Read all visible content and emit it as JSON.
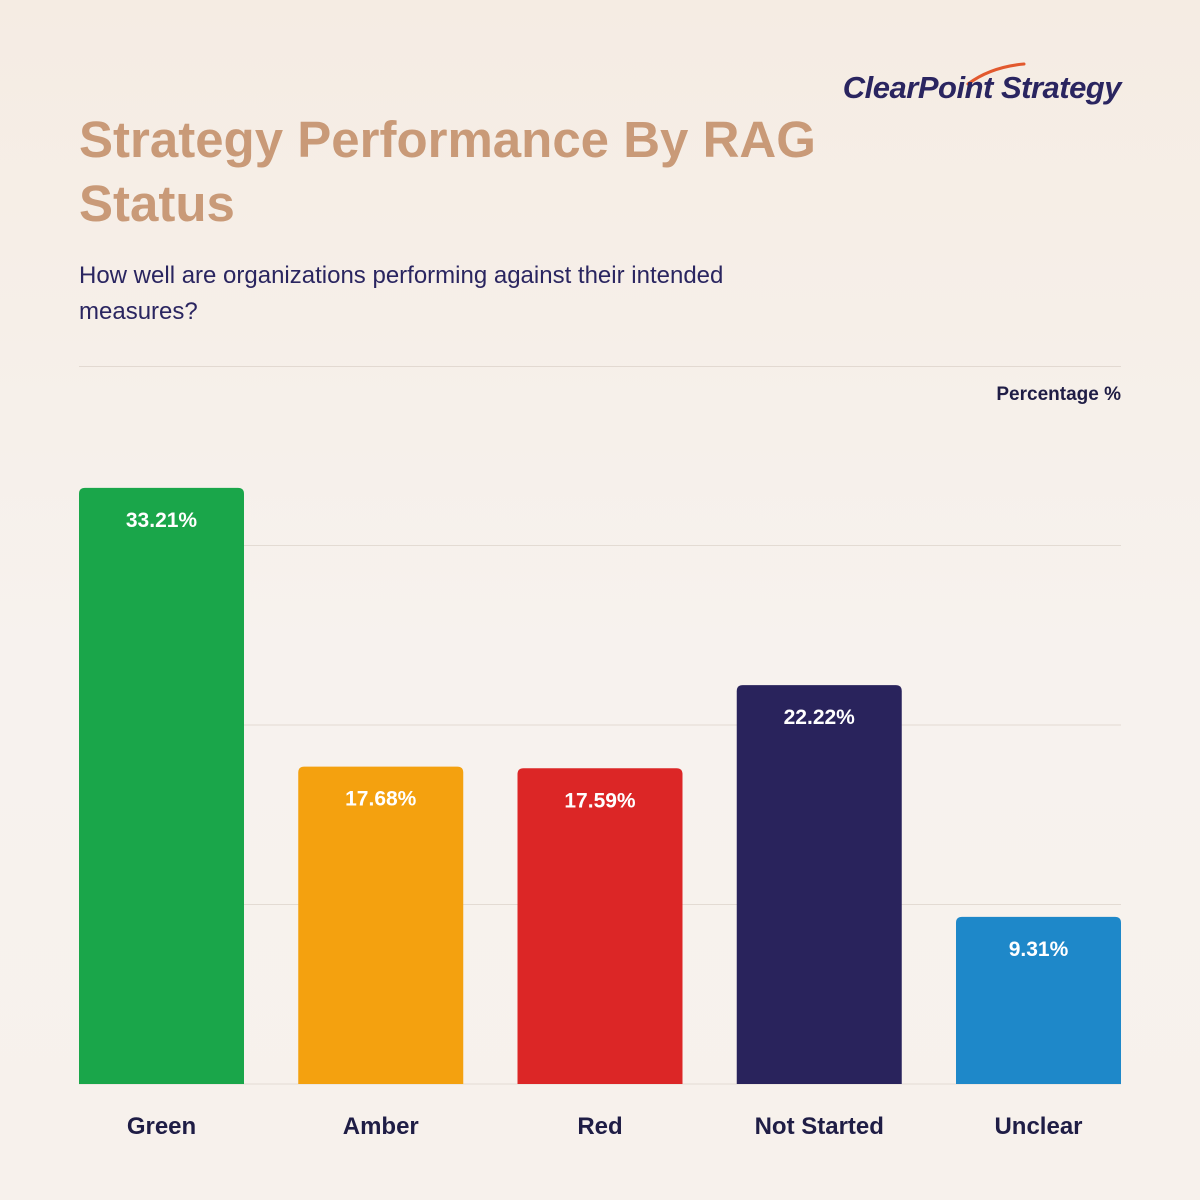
{
  "brand": {
    "name": "ClearPoint Strategy",
    "swoosh_color": "#e2592e"
  },
  "header": {
    "title": "Strategy Performance By RAG Status",
    "subtitle": "How well are organizations performing against their intended measures?"
  },
  "chart_data": {
    "type": "bar",
    "title": "Strategy Performance By RAG Status",
    "subtitle": "How well are organizations performing against their intended measures?",
    "ylabel": "Percentage %",
    "xlabel": "",
    "categories": [
      "Green",
      "Amber",
      "Red",
      "Not Started",
      "Unclear"
    ],
    "values": [
      33.21,
      17.68,
      17.59,
      22.22,
      9.31
    ],
    "value_labels": [
      "33.21%",
      "17.68%",
      "17.59%",
      "22.22%",
      "9.31%"
    ],
    "colors": [
      "#1aa64a",
      "#f4a10f",
      "#dc2626",
      "#29235c",
      "#1e88c9"
    ],
    "ylim": [
      0,
      40
    ],
    "gridlines": [
      10,
      20,
      30
    ],
    "grid": true,
    "legend": "none"
  }
}
